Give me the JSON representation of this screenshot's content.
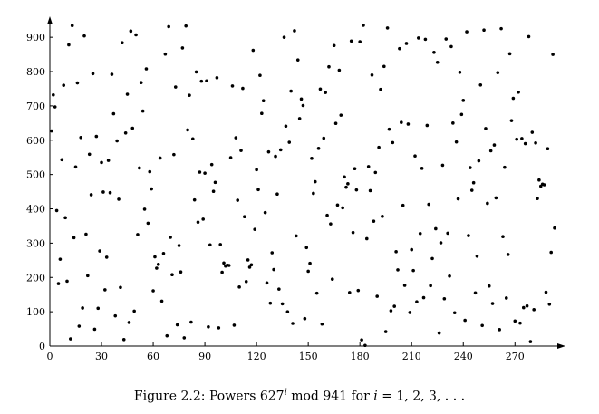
{
  "caption": {
    "prefix": "Figure 2.2: Powers 627",
    "exponent": "i",
    "middle": " mod 941 for ",
    "variable": "i",
    "suffix": " = 1, 2, 3, . . ."
  },
  "chart_data": {
    "type": "scatter",
    "title": "",
    "xlabel": "",
    "ylabel": "",
    "xlim": [
      0,
      293
    ],
    "ylim": [
      0,
      940
    ],
    "xticks": [
      0,
      30,
      60,
      90,
      120,
      150,
      180,
      210,
      240,
      270
    ],
    "yticks": [
      0,
      100,
      200,
      300,
      400,
      500,
      600,
      700,
      800,
      900
    ],
    "grid": false,
    "series": [
      {
        "generator": {
          "base": 627,
          "modulus": 941,
          "i_start": 1,
          "count": 293
        },
        "marker_color": "#000000"
      }
    ]
  }
}
